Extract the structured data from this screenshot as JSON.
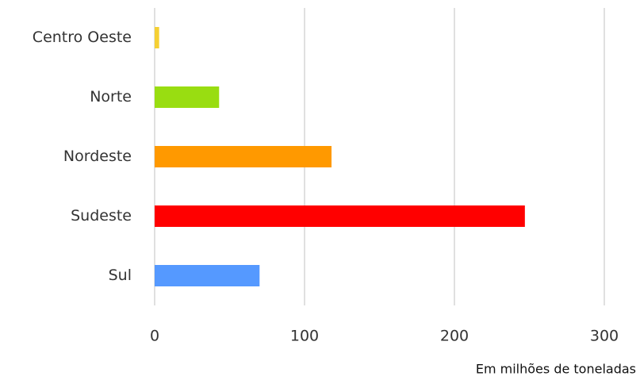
{
  "chart_data": {
    "type": "bar",
    "orientation": "horizontal",
    "categories": [
      "Centro Oeste",
      "Norte",
      "Nordeste",
      "Sudeste",
      "Sul"
    ],
    "values": [
      3,
      43,
      118,
      247,
      70
    ],
    "colors": [
      "#f5d033",
      "#99dd11",
      "#ff9900",
      "#ff0000",
      "#5599ff"
    ],
    "xlim": [
      0,
      300
    ],
    "xticks": [
      0,
      100,
      200,
      300
    ],
    "grid": true,
    "x_label": "Em milhões de toneladas"
  }
}
